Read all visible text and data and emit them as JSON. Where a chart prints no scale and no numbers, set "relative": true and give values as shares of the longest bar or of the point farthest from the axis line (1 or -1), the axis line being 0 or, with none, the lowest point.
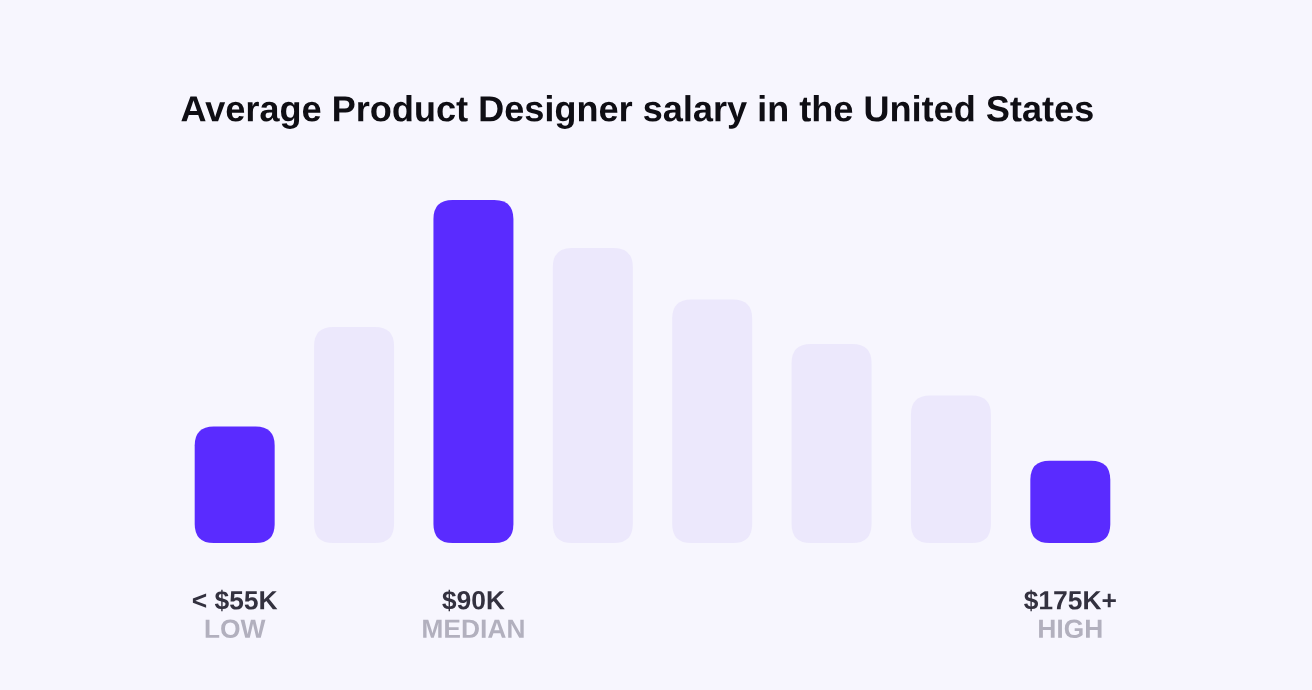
{
  "chart_data": {
    "type": "bar",
    "title": "Average Product Designer salary in the United States",
    "relative": true,
    "categories": [
      "< $55K",
      null,
      "$90K",
      null,
      null,
      null,
      null,
      "$175K+"
    ],
    "values": [
      0.34,
      0.63,
      1,
      0.86,
      0.71,
      0.58,
      0.43,
      0.24
    ],
    "colors": [
      "#5a2bff",
      "#ece8fc",
      "#5a2bff",
      "#ece8fc",
      "#ece8fc",
      "#ece8fc",
      "#ece8fc",
      "#5a2bff"
    ],
    "annotations": [
      "LOW",
      "MEDIAN",
      "HIGH"
    ],
    "grid": false,
    "legend": false
  }
}
